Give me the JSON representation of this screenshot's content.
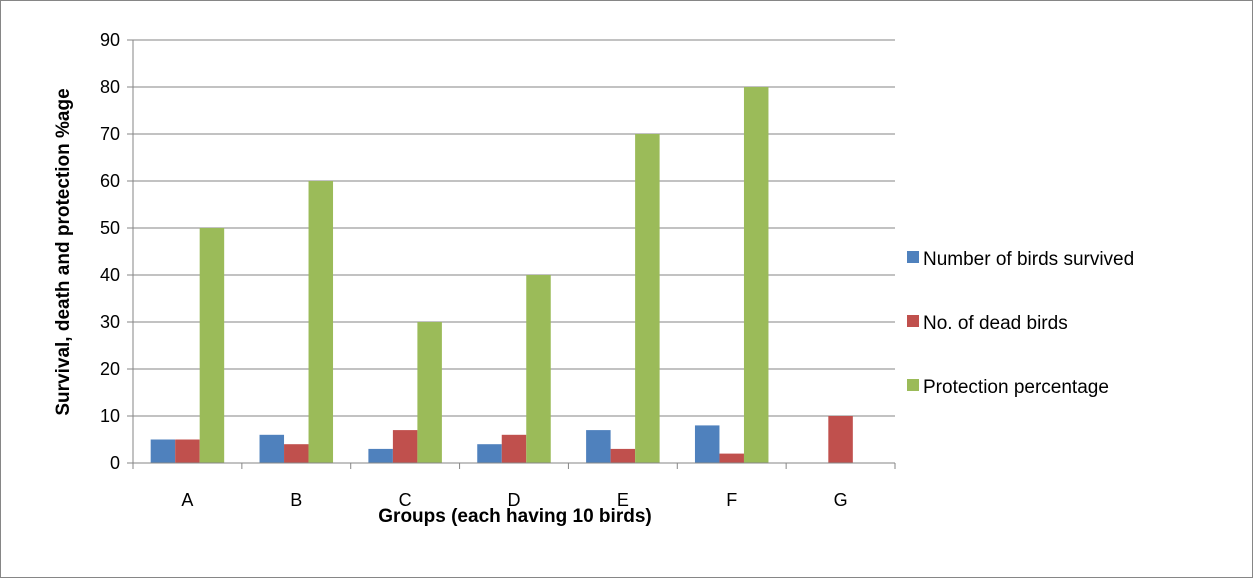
{
  "chart_data": {
    "type": "bar",
    "categories": [
      "A",
      "B",
      "C",
      "D",
      "E",
      "F",
      "G"
    ],
    "series": [
      {
        "name": "Number of birds survived",
        "color": "#4F81BD",
        "values": [
          5,
          6,
          3,
          4,
          7,
          8,
          0
        ]
      },
      {
        "name": "No. of dead birds",
        "color": "#C0504D",
        "values": [
          5,
          4,
          7,
          6,
          3,
          2,
          10
        ]
      },
      {
        "name": "Protection percentage",
        "color": "#9BBB59",
        "values": [
          50,
          60,
          30,
          40,
          70,
          80,
          0
        ]
      }
    ],
    "xlabel": "Groups (each having 10 birds)",
    "ylabel": "Survival, death and protection %age",
    "ylim": [
      0,
      90
    ],
    "yticks": [
      0,
      10,
      20,
      30,
      40,
      50,
      60,
      70,
      80,
      90
    ],
    "grid": true,
    "legend_position": "right"
  }
}
